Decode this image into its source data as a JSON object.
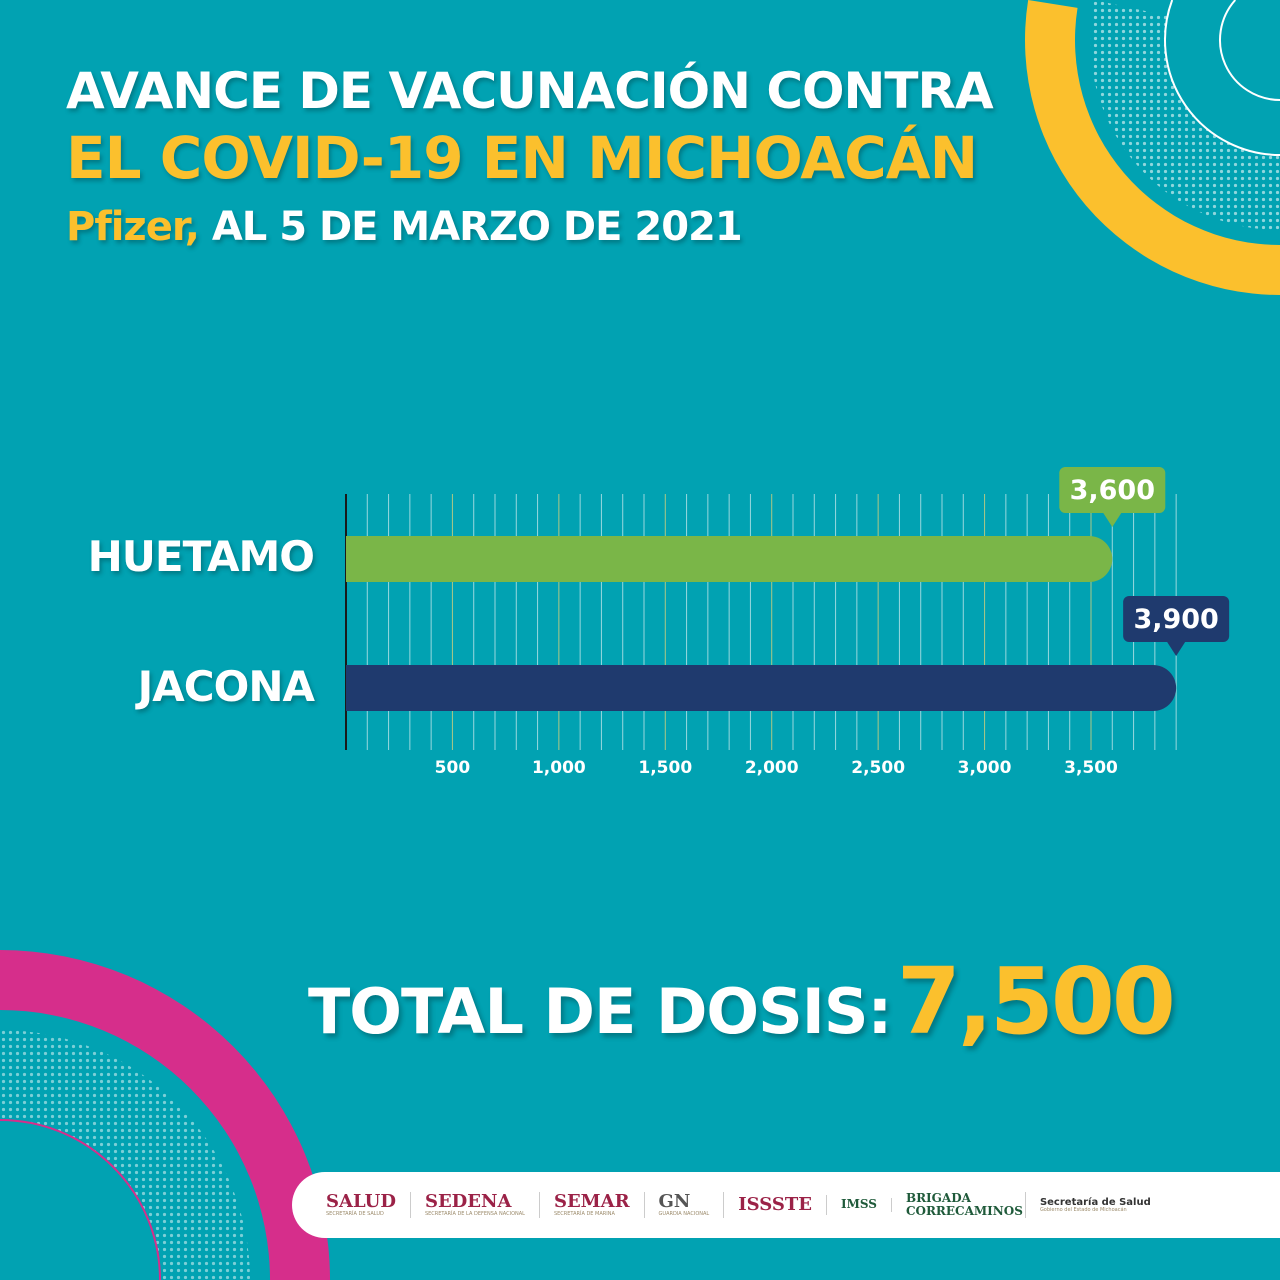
{
  "header": {
    "line1": "AVANCE DE VACUNACIÓN CONTRA",
    "line2": "EL COVID-19 EN MICHOACÁN",
    "line3_highlight": "Pfizer,",
    "line3_rest": "AL 5 DE MARZO DE 2021"
  },
  "colors": {
    "background": "#01a2b2",
    "yellow": "#fbc02d",
    "green": "#7ab648",
    "navy": "#1f3a6e",
    "magenta": "#d62e8b"
  },
  "chart_data": {
    "type": "bar",
    "orientation": "horizontal",
    "categories": [
      "HUETAMO",
      "JACONA"
    ],
    "values": [
      3600,
      3900
    ],
    "data_labels": [
      "3,600",
      "3,900"
    ],
    "bar_colors": [
      "#7ab648",
      "#1f3a6e"
    ],
    "xlim": [
      0,
      3900
    ],
    "xticks": [
      500,
      1000,
      1500,
      2000,
      2500,
      3000,
      3500
    ],
    "xtick_labels": [
      "500",
      "1,000",
      "1,500",
      "2,000",
      "2,500",
      "3,000",
      "3,500"
    ],
    "grid": true
  },
  "total": {
    "label": "TOTAL DE DOSIS:",
    "value": "7,500"
  },
  "footer": {
    "logos": [
      {
        "name": "SALUD",
        "sub": "SECRETARÍA DE SALUD"
      },
      {
        "name": "SEDENA",
        "sub": "SECRETARÍA DE LA DEFENSA NACIONAL"
      },
      {
        "name": "SEMAR",
        "sub": "SECRETARÍA DE MARINA"
      },
      {
        "name": "GN",
        "sub": "GUARDIA NACIONAL"
      },
      {
        "name": "ISSSTE",
        "sub": ""
      },
      {
        "name": "IMSS",
        "sub": ""
      },
      {
        "name": "BRIGADA CORRECAMINOS",
        "sub": ""
      },
      {
        "name": "Secretaría de Salud",
        "sub": "Gobierno del Estado de Michoacán"
      }
    ]
  }
}
